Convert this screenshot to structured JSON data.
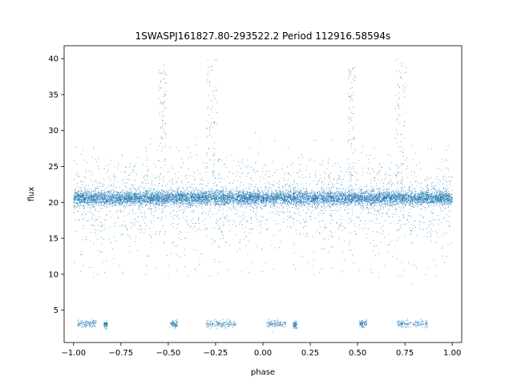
{
  "chart_data": {
    "type": "scatter",
    "title": "1SWASPJ161827.80-293522.2 Period 112916.58594s",
    "xlabel": "phase",
    "ylabel": "flux",
    "xlim": [
      -1.05,
      1.05
    ],
    "ylim": [
      0.5,
      41.8
    ],
    "xticks": [
      -1.0,
      -0.75,
      -0.5,
      -0.25,
      0.0,
      0.25,
      0.5,
      0.75,
      1.0
    ],
    "xtick_labels": [
      "−1.00",
      "−0.75",
      "−0.50",
      "−0.25",
      "0.00",
      "0.25",
      "0.50",
      "0.75",
      "1.00"
    ],
    "yticks": [
      5,
      10,
      15,
      20,
      25,
      30,
      35,
      40
    ],
    "ytick_labels": [
      "5",
      "10",
      "15",
      "20",
      "25",
      "30",
      "35",
      "40"
    ],
    "grid": false,
    "point_color": "#1f77b4",
    "series": [
      {
        "baseline_level": 20.6,
        "baseline_scatter": 0.5,
        "x_range": [
          -1.0,
          1.0
        ],
        "dip_clusters": [
          {
            "x_center": -0.93,
            "x_width": 0.05,
            "y": 3.1
          },
          {
            "x_center": -0.83,
            "x_width": 0.01,
            "y": 3.0
          },
          {
            "x_center": -0.47,
            "x_width": 0.02,
            "y": 3.1
          },
          {
            "x_center": -0.22,
            "x_width": 0.08,
            "y": 3.1
          },
          {
            "x_center": 0.07,
            "x_width": 0.05,
            "y": 3.1
          },
          {
            "x_center": 0.17,
            "x_width": 0.01,
            "y": 3.0
          },
          {
            "x_center": 0.53,
            "x_width": 0.02,
            "y": 3.1
          },
          {
            "x_center": 0.79,
            "x_width": 0.08,
            "y": 3.1
          }
        ],
        "flare_clusters": [
          {
            "x_center": -0.53,
            "x_width": 0.02,
            "y_top": 39.3
          },
          {
            "x_center": -0.27,
            "x_width": 0.03,
            "y_top": 40.0
          },
          {
            "x_center": 0.47,
            "x_width": 0.02,
            "y_top": 39.3
          },
          {
            "x_center": 0.73,
            "x_width": 0.03,
            "y_top": 40.0
          }
        ]
      }
    ]
  }
}
